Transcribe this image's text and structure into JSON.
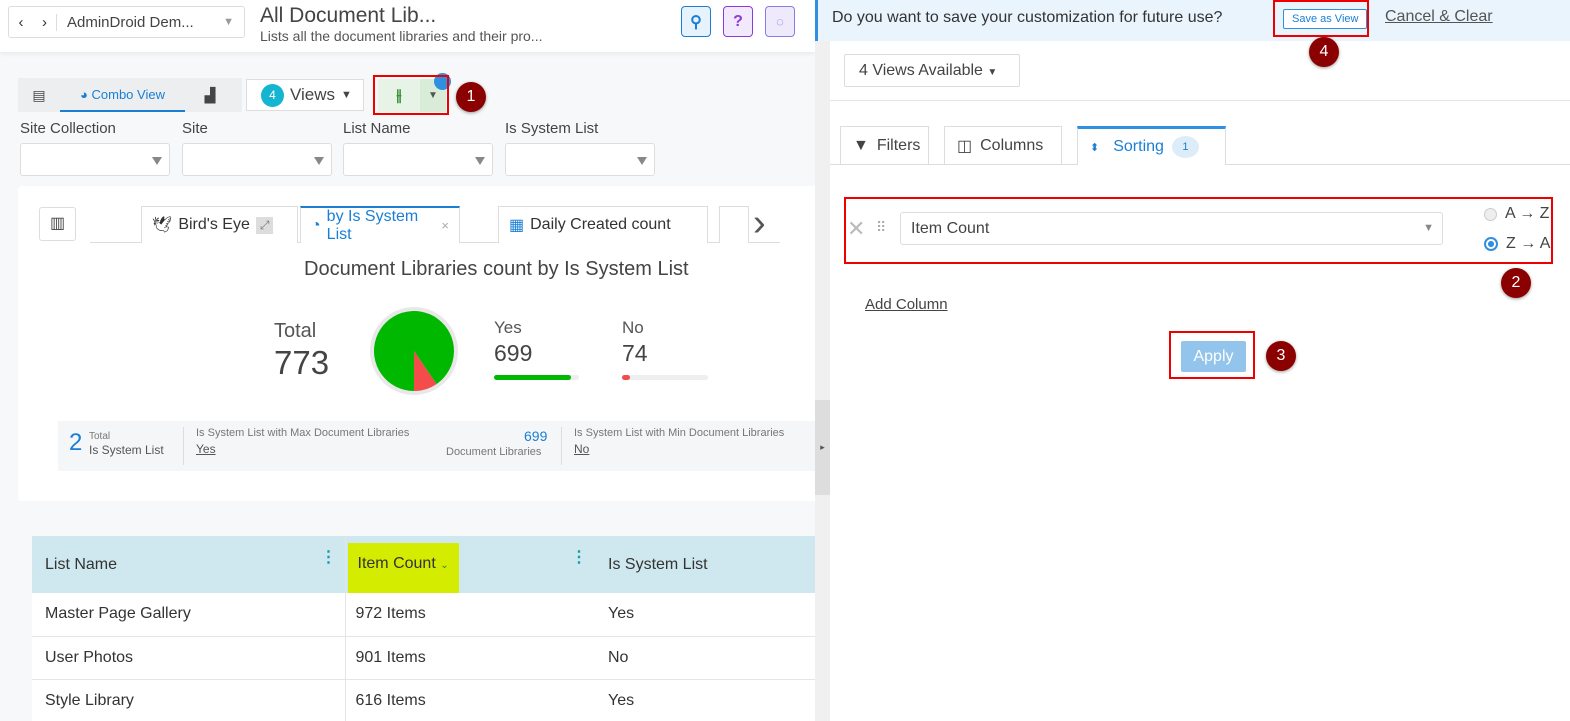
{
  "header": {
    "tenant": "AdminDroid Dem...",
    "title": "All Document Lib...",
    "subtitle": "Lists all the document libraries and their pro..."
  },
  "toolbar": {
    "combo_view": "Combo View",
    "views_count": "4",
    "views_label": "Views",
    "filter_badge": "1"
  },
  "filters": [
    {
      "label": "Site Collection",
      "value": ""
    },
    {
      "label": "Site",
      "value": ""
    },
    {
      "label": "List Name",
      "value": ""
    },
    {
      "label": "Is System List",
      "value": ""
    }
  ],
  "chart_tabs": [
    {
      "label": "Bird's Eye"
    },
    {
      "label": "by Is System List"
    },
    {
      "label": "Daily Created count"
    }
  ],
  "chart_data": {
    "type": "pie",
    "title": "Document Libraries count by Is System List",
    "categories": [
      "Yes",
      "No"
    ],
    "values": [
      699,
      74
    ],
    "total_label": "Total",
    "total": 773,
    "colors": [
      "#00b800",
      "#f44b4b"
    ]
  },
  "summary": {
    "count": "2",
    "total_label": "Total",
    "category_label": "Is System List",
    "max_label": "Is System List with Max Document Libraries",
    "max_value": "Yes",
    "max_count": "699",
    "max_unit": "Document Libraries",
    "min_label": "Is System List with Min Document Libraries",
    "min_value": "No"
  },
  "table": {
    "columns": [
      "List Name",
      "Item Count",
      "Is System List"
    ],
    "rows": [
      [
        "Master Page Gallery",
        "972 Items",
        "Yes"
      ],
      [
        "User Photos",
        "901 Items",
        "No"
      ],
      [
        "Style Library",
        "616 Items",
        "Yes"
      ]
    ]
  },
  "panel": {
    "banner_text": "Do you want to save your customization for future use?",
    "save_as_view": "Save as View",
    "cancel_clear": "Cancel & Clear",
    "views_available": "4 Views Available",
    "tabs": {
      "filters": "Filters",
      "columns": "Columns",
      "sorting": "Sorting",
      "sorting_badge": "1"
    },
    "sort_column": "Item Count",
    "sort_options": [
      "A → Z",
      "Z → A"
    ],
    "sort_selected": "Z → A",
    "add_column": "Add Column",
    "apply": "Apply"
  },
  "annotations": [
    "1",
    "2",
    "3",
    "4"
  ],
  "colors": {
    "accent": "#1a7fd4",
    "annotation": "#8b0000",
    "highlight": "#d4ec00"
  }
}
